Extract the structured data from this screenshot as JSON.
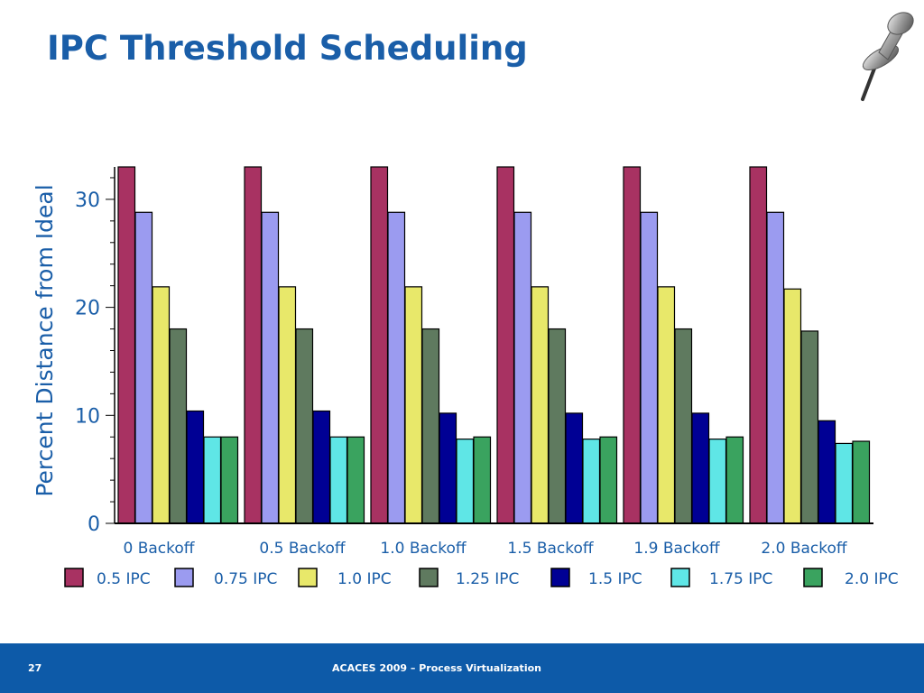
{
  "slide": {
    "title": "IPC Threshold Scheduling",
    "page_number": "27",
    "footer": "ACACES 2009 – Process Virtualization"
  },
  "icons": {
    "pin": "pushpin-icon"
  },
  "colors": {
    "title": "#1a5ea8",
    "footer_bar": "#0d5aa8"
  },
  "chart_data": {
    "type": "bar",
    "title": "",
    "xlabel": "",
    "ylabel": "Percent Distance from Ideal",
    "ylim": [
      0,
      33
    ],
    "yticks": [
      0,
      10,
      20,
      30
    ],
    "legend_position": "bottom",
    "categories": [
      "0 Backoff",
      "0.5 Backoff",
      "1.0 Backoff",
      "1.5 Backoff",
      "1.9 Backoff",
      "2.0 Backoff"
    ],
    "series": [
      {
        "name": "0.5 IPC",
        "color": "#a83262",
        "values": [
          33,
          33,
          33,
          33,
          33,
          33
        ],
        "clipped": true
      },
      {
        "name": "0.75 IPC",
        "color": "#9b9bf0",
        "values": [
          28.8,
          28.8,
          28.8,
          28.8,
          28.8,
          28.8
        ]
      },
      {
        "name": "1.0 IPC",
        "color": "#e8e86a",
        "values": [
          21.9,
          21.9,
          21.9,
          21.9,
          21.9,
          21.7
        ]
      },
      {
        "name": "1.25 IPC",
        "color": "#5f7a5f",
        "values": [
          18.0,
          18.0,
          18.0,
          18.0,
          18.0,
          17.8
        ]
      },
      {
        "name": "1.5 IPC",
        "color": "#000094",
        "values": [
          10.4,
          10.4,
          10.2,
          10.2,
          10.2,
          9.5
        ]
      },
      {
        "name": "1.75 IPC",
        "color": "#5fe6e6",
        "values": [
          8.0,
          8.0,
          7.8,
          7.8,
          7.8,
          7.4
        ]
      },
      {
        "name": "2.0 IPC",
        "color": "#3aa35f",
        "values": [
          8.0,
          8.0,
          8.0,
          8.0,
          8.0,
          7.6
        ]
      }
    ]
  }
}
